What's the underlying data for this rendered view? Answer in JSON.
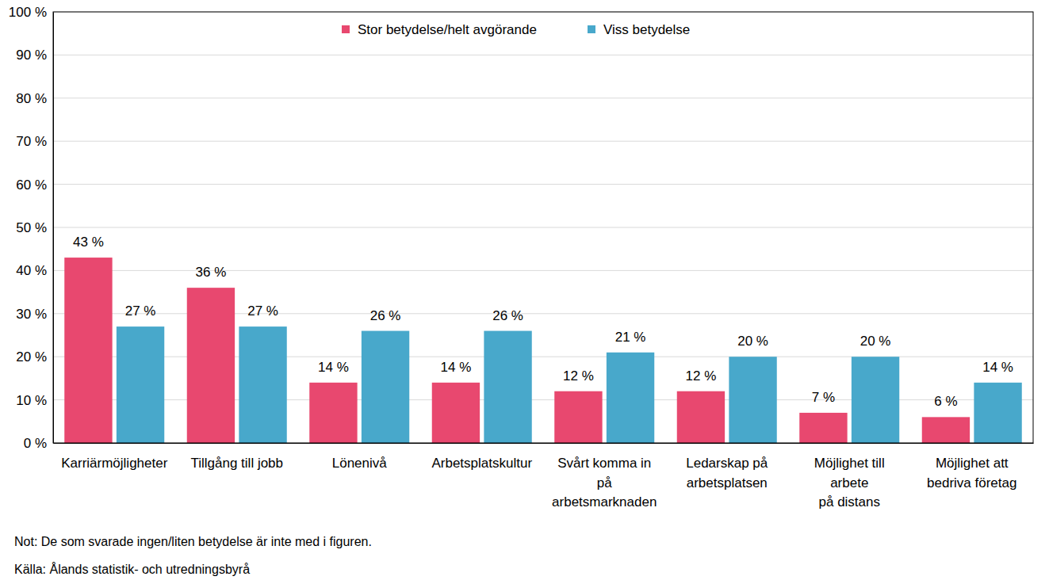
{
  "chart_data": {
    "type": "bar",
    "categories": [
      "Karriärmöjligheter",
      "Tillgång till jobb",
      "Lönenivå",
      "Arbetsplatskultur",
      "Svårt komma in\npå\narbetsmarknaden",
      "Ledarskap på\narbetsplatsen",
      "Möjlighet till\narbete\npå distans",
      "Möjlighet att\nbedriva företag"
    ],
    "series": [
      {
        "name": "Stor betydelse/helt avgörande",
        "color": "#e8486f",
        "values": [
          43,
          36,
          14,
          14,
          12,
          12,
          7,
          6
        ],
        "value_labels": [
          "43 %",
          "36 %",
          "14 %",
          "14 %",
          "12 %",
          "12 %",
          "7 %",
          "6 %"
        ]
      },
      {
        "name": "Viss betydelse",
        "color": "#48a8cb",
        "values": [
          27,
          27,
          26,
          26,
          21,
          20,
          20,
          14
        ],
        "value_labels": [
          "27 %",
          "27 %",
          "26 %",
          "26 %",
          "21 %",
          "20 %",
          "20 %",
          "14 %"
        ]
      }
    ],
    "ylim": [
      0,
      100
    ],
    "yticks": [
      {
        "value": 0,
        "label": "0 %"
      },
      {
        "value": 10,
        "label": "10 %"
      },
      {
        "value": 20,
        "label": "20 %"
      },
      {
        "value": 30,
        "label": "30 %"
      },
      {
        "value": 40,
        "label": "40 %"
      },
      {
        "value": 50,
        "label": "50 %"
      },
      {
        "value": 60,
        "label": "60 %"
      },
      {
        "value": 70,
        "label": "70 %"
      },
      {
        "value": 80,
        "label": "80 %"
      },
      {
        "value": 90,
        "label": "90 %"
      },
      {
        "value": 100,
        "label": "100 %"
      }
    ],
    "grid": true,
    "legend": "top",
    "data_labels": true,
    "note": "Not: De som svarade ingen/liten betydelse är inte med i figuren.",
    "source": "Källa: Ålands statistik- och utredningsbyrå"
  }
}
